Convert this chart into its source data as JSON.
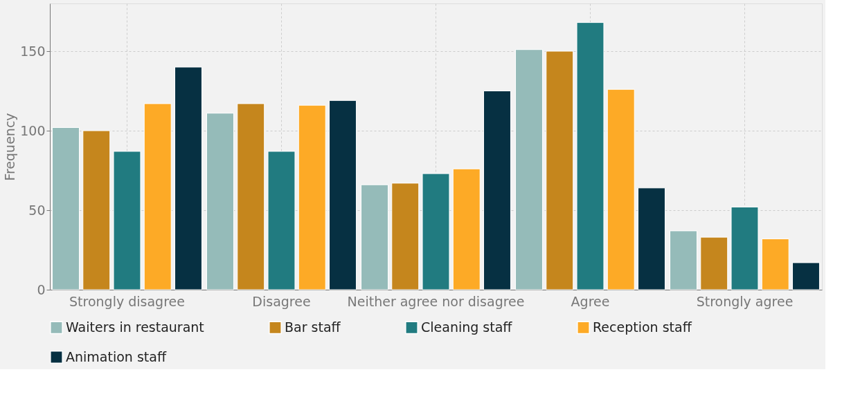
{
  "chart_data": {
    "type": "bar",
    "ylabel": "Frequency",
    "categories": [
      "Strongly disagree",
      "Disagree",
      "Neither agree nor disagree",
      "Agree",
      "Strongly agree"
    ],
    "series": [
      {
        "name": "Waiters in restaurant",
        "color": "#95bbb9",
        "values": [
          102,
          111,
          66,
          151,
          37
        ]
      },
      {
        "name": "Bar staff",
        "color": "#c5861d",
        "values": [
          100,
          117,
          67,
          150,
          33
        ]
      },
      {
        "name": "Cleaning staff",
        "color": "#217b80",
        "values": [
          87,
          87,
          73,
          168,
          52
        ]
      },
      {
        "name": "Reception staff",
        "color": "#fdaa26",
        "values": [
          117,
          116,
          76,
          126,
          32
        ]
      },
      {
        "name": "Animation staff",
        "color": "#063042",
        "values": [
          140,
          119,
          125,
          64,
          17
        ]
      }
    ],
    "ylim": [
      0,
      180
    ],
    "yticks": [
      0,
      50,
      100,
      150
    ],
    "grid": true,
    "legend": "bottom"
  }
}
